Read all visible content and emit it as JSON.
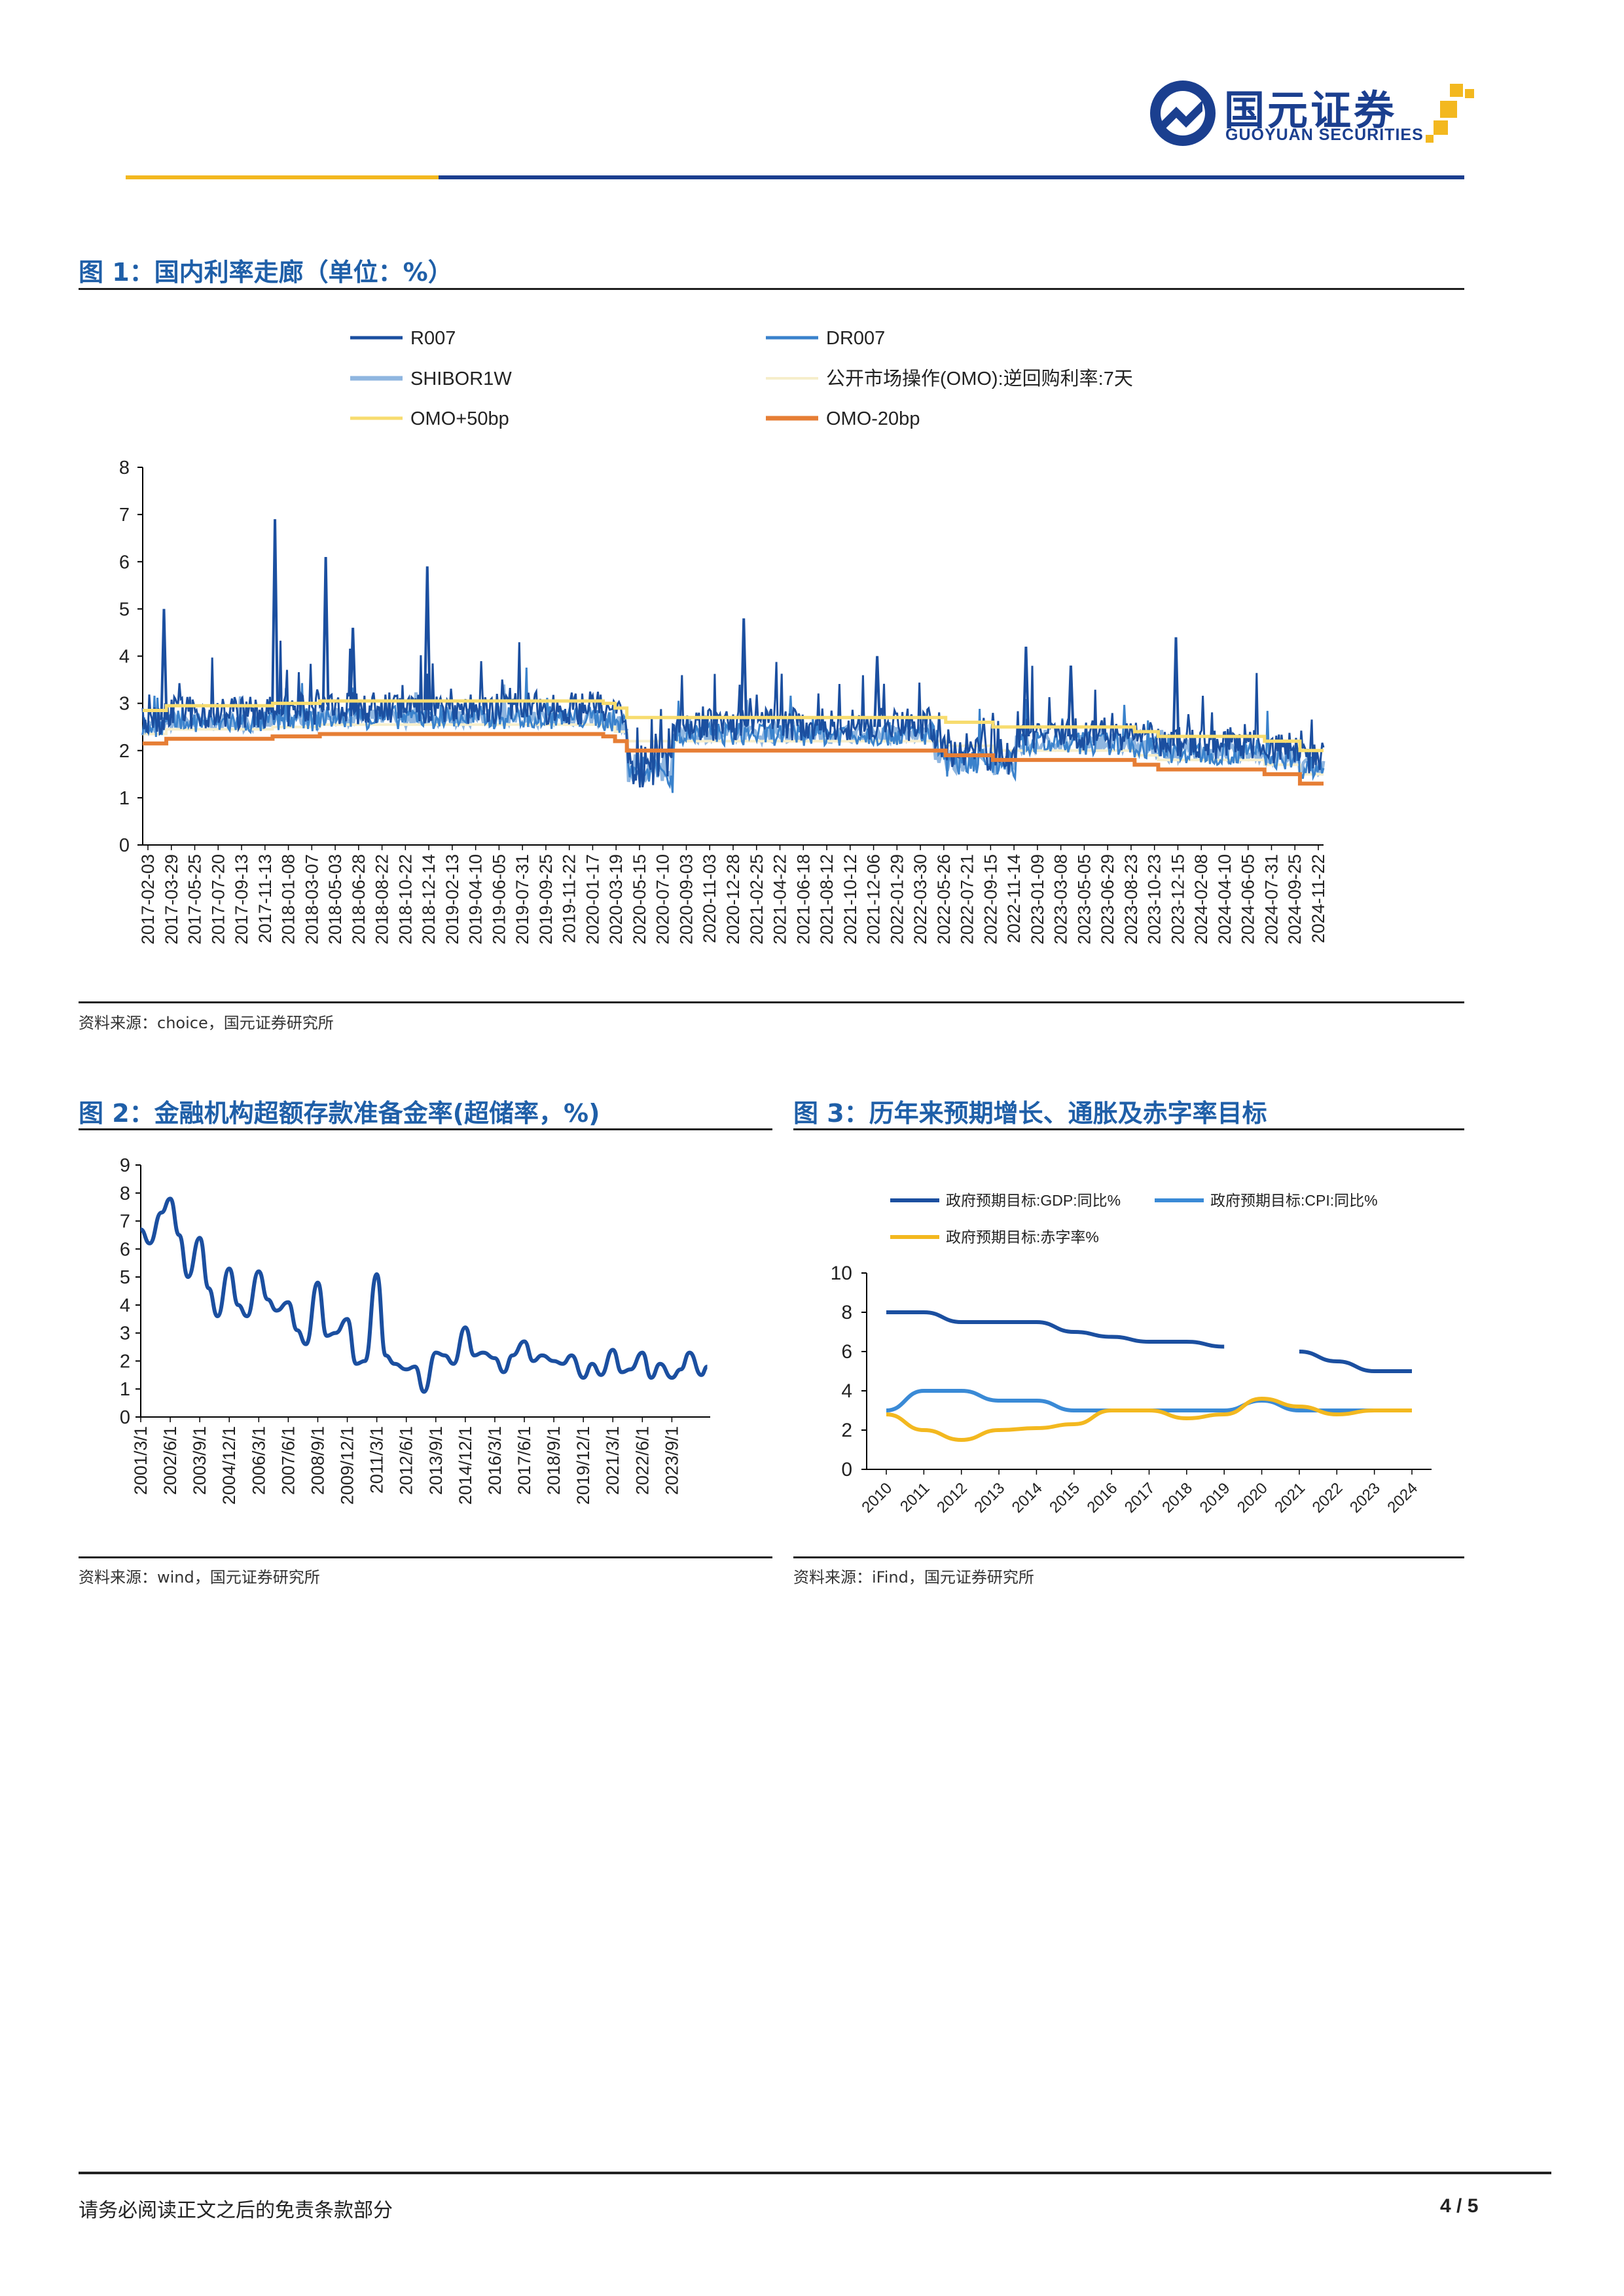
{
  "header": {
    "company_cn": "国元证券",
    "company_en": "GUOYUAN SECURITIES"
  },
  "fig1": {
    "title": "图 1：国内利率走廊（单位：%）",
    "source": "资料来源：choice，国元证券研究所"
  },
  "fig2": {
    "title": "图 2：金融机构超额存款准备金率(超储率，%)",
    "source": "资料来源：wind，国元证券研究所"
  },
  "fig3": {
    "title": "图 3：历年来预期增长、通胀及赤字率目标",
    "source": "资料来源：iFind，国元证券研究所"
  },
  "footer": {
    "disclaimer": "请务必阅读正文之后的免责条款部分",
    "page": "4 / 5"
  },
  "colors": {
    "title_blue": "#1f5fa8",
    "r007": "#1b4fa0",
    "dr007": "#3a82cc",
    "shibor": "#8fb6e0",
    "omo": "#f6eecb",
    "omo_plus": "#f7dc6f",
    "omo_minus": "#e67e35",
    "gdp": "#1b4fa0",
    "cpi": "#3a8ad6",
    "deficit": "#f3b81f"
  },
  "chart_data": [
    {
      "type": "line",
      "ylim": [
        0,
        8
      ],
      "yticks": [
        "0",
        "1",
        "2",
        "3",
        "4",
        "5",
        "6",
        "7",
        "8"
      ],
      "legend": [
        "R007",
        "DR007",
        "SHIBOR1W",
        "公开市场操作(OMO):逆回购利率:7天",
        "OMO+50bp",
        "OMO-20bp"
      ],
      "x_tick_labels": [
        "2017-02-03",
        "2017-03-29",
        "2017-05-25",
        "2017-07-20",
        "2017-09-13",
        "2017-11-13",
        "2018-01-08",
        "2018-03-07",
        "2018-05-03",
        "2018-06-28",
        "2018-08-22",
        "2018-10-22",
        "2018-12-14",
        "2019-02-13",
        "2019-04-10",
        "2019-06-05",
        "2019-07-31",
        "2019-09-25",
        "2019-11-22",
        "2020-01-17",
        "2020-03-19",
        "2020-05-15",
        "2020-07-10",
        "2020-09-03",
        "2020-11-03",
        "2020-12-28",
        "2021-02-25",
        "2021-04-22",
        "2021-06-18",
        "2021-08-12",
        "2021-10-12",
        "2021-12-06",
        "2022-01-29",
        "2022-03-30",
        "2022-05-26",
        "2022-07-21",
        "2022-09-15",
        "2022-11-14",
        "2023-01-09",
        "2023-03-08",
        "2023-05-05",
        "2023-06-29",
        "2023-08-23",
        "2023-10-23",
        "2023-12-15",
        "2024-02-08",
        "2024-04-10",
        "2024-06-05",
        "2024-07-31",
        "2024-09-25",
        "2024-11-22"
      ],
      "omo_steps": [
        {
          "x": 0,
          "v": 2.35
        },
        {
          "x": 2,
          "v": 2.45
        },
        {
          "x": 11,
          "v": 2.5
        },
        {
          "x": 15,
          "v": 2.55
        },
        {
          "x": 31,
          "v": 2.55
        },
        {
          "x": 39,
          "v": 2.5
        },
        {
          "x": 40,
          "v": 2.4
        },
        {
          "x": 41,
          "v": 2.2
        },
        {
          "x": 68,
          "v": 2.1
        },
        {
          "x": 72,
          "v": 2.0
        },
        {
          "x": 84,
          "v": 1.9
        },
        {
          "x": 86,
          "v": 1.8
        },
        {
          "x": 95,
          "v": 1.7
        },
        {
          "x": 98,
          "v": 1.5
        },
        {
          "x": 100,
          "v": 1.5
        }
      ],
      "r007_peaks": [
        {
          "x": 1.8,
          "v": 5.0
        },
        {
          "x": 11.2,
          "v": 6.9
        },
        {
          "x": 15.5,
          "v": 6.1
        },
        {
          "x": 17.8,
          "v": 4.6
        },
        {
          "x": 24.1,
          "v": 5.9
        },
        {
          "x": 50.9,
          "v": 4.8
        },
        {
          "x": 62.2,
          "v": 4.0
        },
        {
          "x": 74.8,
          "v": 4.2
        },
        {
          "x": 78.6,
          "v": 3.8
        },
        {
          "x": 87.5,
          "v": 4.4
        }
      ]
    },
    {
      "type": "line",
      "ylim": [
        0,
        9
      ],
      "yticks": [
        "0",
        "1",
        "2",
        "3",
        "4",
        "5",
        "6",
        "7",
        "8",
        "9"
      ],
      "x_tick_labels": [
        "2001/3/1",
        "2002/6/1",
        "2003/9/1",
        "2004/12/1",
        "2006/3/1",
        "2007/6/1",
        "2008/9/1",
        "2009/12/1",
        "2011/3/1",
        "2012/6/1",
        "2013/9/1",
        "2014/12/1",
        "2016/3/1",
        "2017/6/1",
        "2018/9/1",
        "2019/12/1",
        "2021/3/1",
        "2022/6/1",
        "2023/9/1"
      ],
      "x": [
        0,
        0.3,
        0.7,
        1.0,
        1.3,
        1.6,
        2.0,
        2.3,
        2.6,
        3.0,
        3.3,
        3.6,
        4.0,
        4.3,
        4.6,
        5.0,
        5.3,
        5.6,
        6.0,
        6.3,
        6.6,
        7.0,
        7.3,
        7.6,
        8.0,
        8.3,
        8.6,
        9.0,
        9.3,
        9.6,
        10.0,
        10.3,
        10.6,
        11.0,
        11.3,
        11.6,
        12.0,
        12.3,
        12.6,
        13.0,
        13.3,
        13.6,
        14.0,
        14.3,
        14.6,
        15.0,
        15.3,
        15.6,
        16.0,
        16.3,
        16.6,
        17.0,
        17.3,
        17.6,
        18.0,
        18.3,
        18.6,
        19.0,
        19.2
      ],
      "values": [
        6.7,
        6.2,
        7.3,
        7.8,
        6.5,
        5.0,
        6.4,
        4.6,
        3.6,
        5.3,
        4.0,
        3.6,
        5.2,
        4.2,
        3.8,
        4.1,
        3.1,
        2.6,
        4.8,
        2.9,
        3.0,
        3.5,
        1.9,
        2.0,
        5.1,
        2.2,
        1.9,
        1.7,
        1.8,
        0.9,
        2.3,
        2.2,
        1.9,
        3.2,
        2.2,
        2.3,
        2.1,
        1.6,
        2.2,
        2.7,
        2.0,
        2.2,
        2.0,
        1.9,
        2.2,
        1.4,
        1.9,
        1.5,
        2.4,
        1.6,
        1.7,
        2.3,
        1.4,
        1.9,
        1.4,
        1.7,
        2.3,
        1.5,
        1.8
      ],
      "xlabel": "",
      "ylabel": ""
    },
    {
      "type": "line",
      "ylim": [
        0,
        10
      ],
      "yticks": [
        "0",
        "2",
        "4",
        "6",
        "8",
        "10"
      ],
      "categories": [
        "2010",
        "2011",
        "2012",
        "2013",
        "2014",
        "2015",
        "2016",
        "2017",
        "2018",
        "2019",
        "2020",
        "2021",
        "2022",
        "2023",
        "2024"
      ],
      "series": [
        {
          "name": "政府预期目标:GDP:同比%",
          "values": [
            8,
            8,
            7.5,
            7.5,
            7.5,
            7,
            6.75,
            6.5,
            6.5,
            6.25,
            null,
            6,
            5.5,
            5,
            5
          ]
        },
        {
          "name": "政府预期目标:CPI:同比%",
          "values": [
            3,
            4,
            4,
            3.5,
            3.5,
            3,
            3,
            3,
            3,
            3,
            3.5,
            3,
            3,
            3,
            3
          ]
        },
        {
          "name": "政府预期目标:赤字率%",
          "values": [
            2.8,
            2,
            1.5,
            2,
            2.1,
            2.3,
            3,
            3,
            2.6,
            2.8,
            3.6,
            3.2,
            2.8,
            3,
            3
          ]
        }
      ]
    }
  ]
}
